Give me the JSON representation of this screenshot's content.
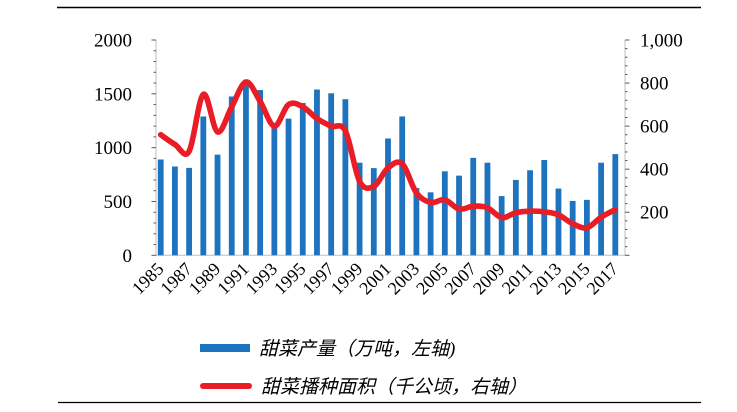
{
  "chart_data": {
    "type": "bar",
    "subtype": "combo-bar-line-dual-axis",
    "title": "",
    "x": [
      1985,
      1986,
      1987,
      1988,
      1989,
      1990,
      1991,
      1992,
      1993,
      1994,
      1995,
      1996,
      1997,
      1998,
      1999,
      2000,
      2001,
      2002,
      2003,
      2004,
      2005,
      2006,
      2007,
      2008,
      2009,
      2010,
      2011,
      2012,
      2013,
      2014,
      2015,
      2016,
      2017
    ],
    "x_tick_labels": [
      "1985",
      "1987",
      "1989",
      "1991",
      "1993",
      "1995",
      "1997",
      "1999",
      "2001",
      "2003",
      "2005",
      "2007",
      "2009",
      "2011",
      "2013",
      "2015",
      "2017"
    ],
    "series": [
      {
        "name": "甜菜产量（万吨，左轴)",
        "type": "bar",
        "axis": "left",
        "color": "#1e73be",
        "values": [
          890,
          825,
          812,
          1290,
          935,
          1475,
          1630,
          1535,
          1230,
          1270,
          1415,
          1540,
          1505,
          1450,
          860,
          810,
          1085,
          1290,
          625,
          585,
          780,
          740,
          905,
          860,
          550,
          700,
          790,
          885,
          620,
          505,
          515,
          860,
          940
        ]
      },
      {
        "name": "甜菜播种面积（千公顷，右轴）",
        "type": "line",
        "axis": "right",
        "color": "#ea1c25",
        "values": [
          560,
          515,
          483,
          748,
          573,
          690,
          805,
          715,
          600,
          700,
          690,
          635,
          600,
          578,
          344,
          320,
          406,
          425,
          290,
          245,
          258,
          215,
          228,
          221,
          175,
          198,
          205,
          202,
          188,
          147,
          128,
          177,
          212
        ]
      }
    ],
    "left_axis": {
      "min": 0,
      "max": 2000,
      "tick_values": [
        0,
        500,
        1000,
        1500,
        2000
      ],
      "tick_labels": [
        "0",
        "500",
        "1000",
        "1500",
        "2000"
      ],
      "minor_step": 100
    },
    "right_axis": {
      "min": 0,
      "max": 1000,
      "tick_values": [
        200,
        400,
        600,
        800,
        1000
      ],
      "tick_labels": [
        "200",
        "400",
        "600",
        "800",
        "1,000"
      ],
      "minor_step": 40
    },
    "grid": false,
    "legend_position": "bottom"
  }
}
